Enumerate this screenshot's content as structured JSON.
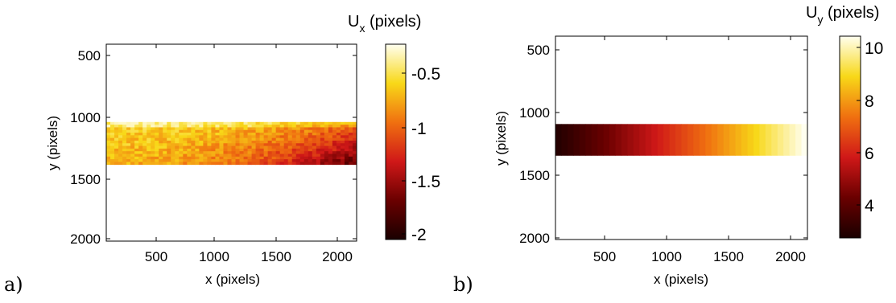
{
  "chart_data": [
    {
      "type": "heatmap",
      "panel_label": "a)",
      "xlabel": "x (pixels)",
      "ylabel": "y (pixels)",
      "xlim": [
        100,
        2130
      ],
      "ylim": [
        2020,
        400
      ],
      "y_reversed": true,
      "xticks": [
        500,
        1000,
        1500,
        2000
      ],
      "yticks": [
        500,
        1000,
        1500,
        2000
      ],
      "data_extent": {
        "x": [
          100,
          2130
        ],
        "y": [
          1040,
          1390
        ]
      },
      "pattern": "noisy; mostly yellow/orange, darker red toward lower-right",
      "colorbar": {
        "title_main": "U",
        "title_sub": "x",
        "title_rest": " (pixels)",
        "range": [
          -2.1,
          -0.25
        ],
        "ticks": [
          -0.5,
          -1,
          -1.5,
          -2
        ],
        "tick_labels": [
          "-0.5",
          "-1",
          "-1.5",
          "-2"
        ],
        "colormap": "hot"
      }
    },
    {
      "type": "heatmap",
      "panel_label": "b)",
      "xlabel": "x (pixels)",
      "ylabel": "y (pixels)",
      "xlim": [
        100,
        2130
      ],
      "ylim": [
        2020,
        400
      ],
      "y_reversed": true,
      "xticks": [
        500,
        1000,
        1500,
        2000
      ],
      "yticks": [
        500,
        1000,
        1500,
        2000
      ],
      "data_extent": {
        "x": [
          100,
          2130
        ],
        "y": [
          1100,
          1350
        ]
      },
      "pattern": "smooth horizontal gradient, low at left, high at right",
      "colorbar": {
        "title_main": "U",
        "title_sub": "y",
        "title_rest": " (pixels)",
        "range": [
          2.7,
          10.4
        ],
        "ticks": [
          4,
          6,
          8,
          10
        ],
        "tick_labels": [
          "4",
          "6",
          "8",
          "10"
        ],
        "colormap": "hot"
      }
    }
  ]
}
